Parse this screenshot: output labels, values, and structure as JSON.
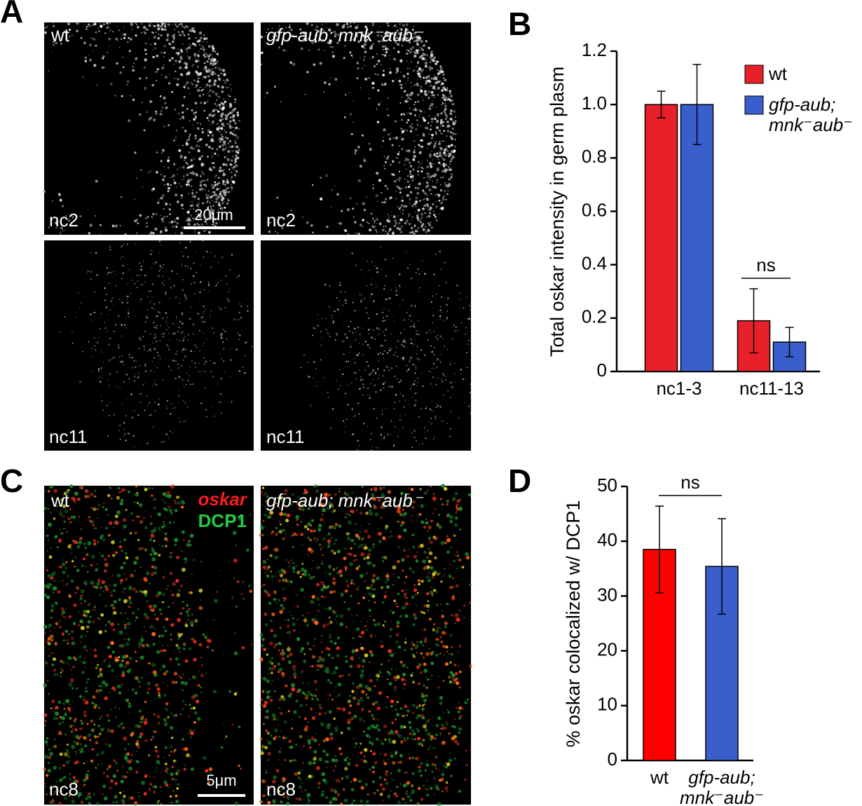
{
  "panels": {
    "labels": [
      "A",
      "B",
      "C",
      "D"
    ]
  },
  "panel_a": {
    "wt_label": "wt",
    "mutant_label": "gfp-aub; mnk⁻aub⁻",
    "stages": [
      "nc2",
      "nc2",
      "nc11",
      "nc11"
    ],
    "scale_bar": "20μm"
  },
  "panel_c": {
    "wt_label": "wt",
    "mutant_label": "gfp-aub; mnk⁻aub⁻",
    "channels": [
      "oskar",
      "DCP1"
    ],
    "stages": [
      "nc8",
      "nc8"
    ],
    "scale_bar": "5μm"
  },
  "chart_data": [
    {
      "type": "bar",
      "ylabel": "Total oskar intensity in germ plasm",
      "categories": [
        "nc1-3",
        "nc11-13"
      ],
      "series": [
        {
          "name": "wt",
          "color": "#e8202a",
          "values": [
            1.0,
            0.19
          ],
          "errors": [
            0.05,
            0.12
          ]
        },
        {
          "name": "gfp-aub; mnk⁻aub⁻",
          "color": "#3a5fcd",
          "values": [
            1.0,
            0.11
          ],
          "errors": [
            0.15,
            0.055
          ]
        }
      ],
      "ylim": [
        0,
        1.2
      ],
      "yticks": [
        0,
        0.2,
        0.4,
        0.6,
        0.8,
        {
          "value": 1,
          "label": "1.0"
        },
        1.2
      ],
      "legend": "upper right",
      "annotations": [
        {
          "text": "ns"
        }
      ]
    },
    {
      "type": "bar",
      "ylabel": "% oskar colocalized w/ DCP1",
      "categories": [
        "wt",
        "gfp-aub; mnk⁻aub⁻"
      ],
      "values": [
        38.5,
        35.4
      ],
      "errors": [
        7.9,
        8.7
      ],
      "colors": [
        "#ff0000",
        "#3a5fcd"
      ],
      "ylim": [
        0,
        50
      ],
      "yticks": [
        0,
        10,
        20,
        30,
        40,
        50
      ],
      "annotations": [
        {
          "text": "ns"
        }
      ]
    }
  ]
}
